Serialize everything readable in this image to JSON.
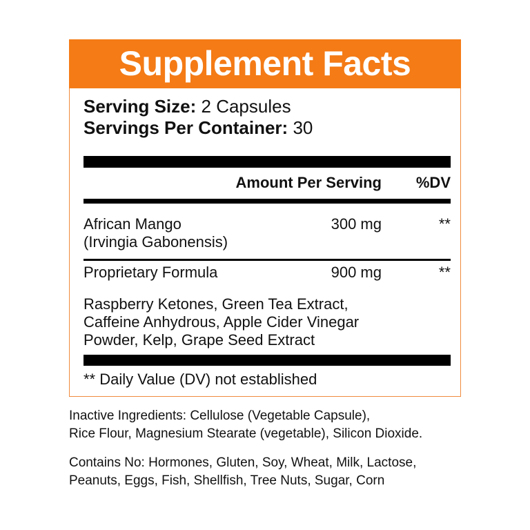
{
  "title": "Supplement Facts",
  "serving_size_label": "Serving Size:",
  "serving_size_value": "2 Capsules",
  "servings_per_container_label": "Servings Per Container:",
  "servings_per_container_value": "30",
  "columns": {
    "amount": "Amount Per Serving",
    "dv": "%DV"
  },
  "rows": [
    {
      "name": "African Mango",
      "subname": "(Irvingia Gabonensis)",
      "amount": "300 mg",
      "dv": "**"
    },
    {
      "name": "Proprietary Formula",
      "amount": "900 mg",
      "dv": "**"
    }
  ],
  "formula_ingredients": [
    "Raspberry Ketones, Green Tea Extract,",
    "Caffeine Anhydrous, Apple Cider Vinegar",
    "Powder, Kelp, Grape Seed Extract"
  ],
  "footnote": "** Daily Value (DV) not established",
  "inactive": [
    "Inactive Ingredients: Cellulose (Vegetable Capsule),",
    "Rice Flour, Magnesium Stearate (vegetable), Silicon Dioxide."
  ],
  "contains_no": [
    "Contains No: Hormones, Gluten, Soy, Wheat, Milk, Lactose,",
    "Peanuts, Eggs, Fish, Shellfish, Tree Nuts, Sugar, Corn"
  ],
  "colors": {
    "accent": "#f47b16"
  }
}
